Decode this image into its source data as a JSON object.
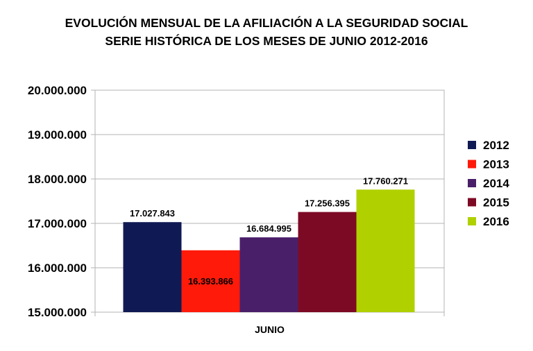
{
  "chart_data": {
    "type": "bar",
    "title_lines": [
      "EVOLUCIÓN MENSUAL DE LA  AFILIACIÓN A LA SEGURIDAD SOCIAL",
      "SERIE HISTÓRICA DE LOS MESES DE JUNIO 2012-2016"
    ],
    "categories": [
      "JUNIO"
    ],
    "series": [
      {
        "name": "2012",
        "values": [
          17027843
        ],
        "label": "17.027.843",
        "color": "#0f1a54"
      },
      {
        "name": "2013",
        "values": [
          16393866
        ],
        "label": "16.393.866",
        "color": "#ff1a0a"
      },
      {
        "name": "2014",
        "values": [
          16684995
        ],
        "label": "16.684.995",
        "color": "#4a1f6a"
      },
      {
        "name": "2015",
        "values": [
          17256395
        ],
        "label": "17.256.395",
        "color": "#7d0a25"
      },
      {
        "name": "2016",
        "values": [
          17760271
        ],
        "label": "17.760.271",
        "color": "#b0d000"
      }
    ],
    "ylim": [
      15000000,
      20000000
    ],
    "yticks": [
      15000000,
      16000000,
      17000000,
      18000000,
      19000000,
      20000000
    ],
    "ytick_labels": [
      "15.000.000",
      "16.000.000",
      "17.000.000",
      "18.000.000",
      "19.000.000",
      "20.000.000"
    ],
    "grid": true,
    "legend_position": "right"
  }
}
